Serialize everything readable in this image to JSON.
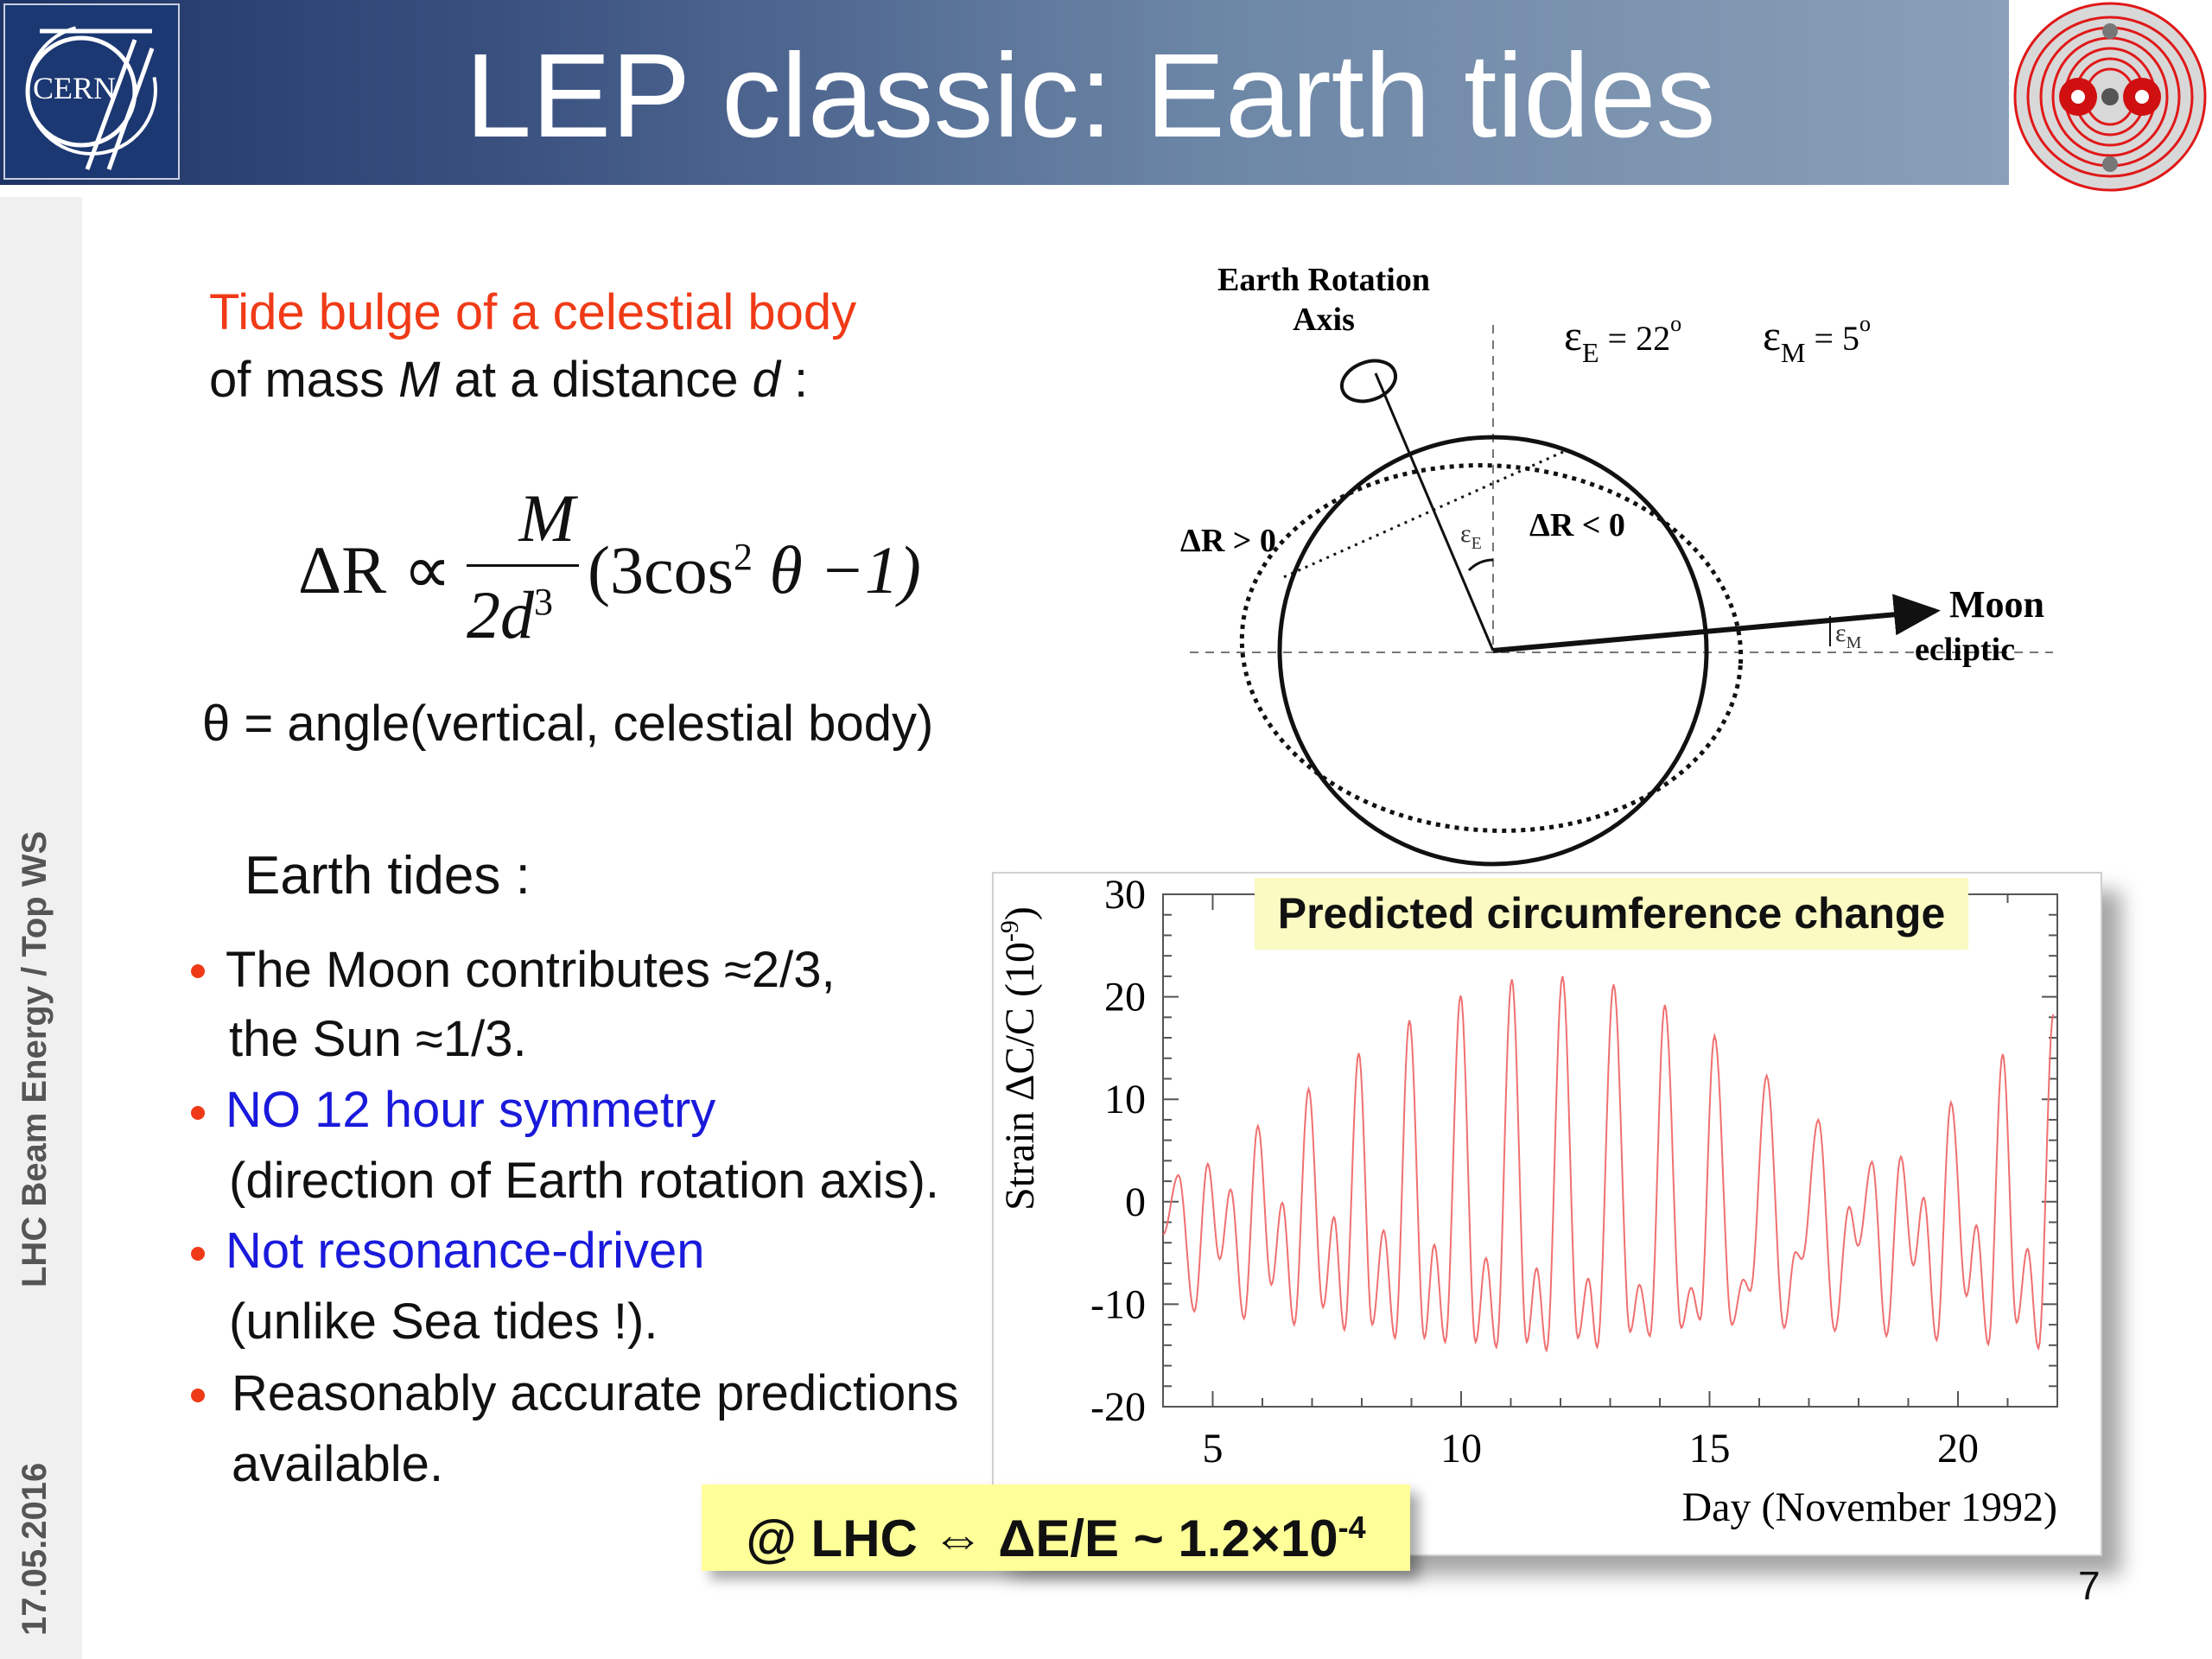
{
  "header": {
    "title": "LEP classic: Earth tides",
    "left_logo_text": "CERN",
    "colors": {
      "header_dark": "#1e3466",
      "header_light": "#8aa0b8"
    }
  },
  "sidebar": {
    "footer_title": "LHC Beam Energy / Top WS",
    "date": "17.05.2016"
  },
  "intro": {
    "line1": "Tide bulge of a celestial body",
    "line2_pre": "of mass ",
    "line2_M": "M",
    "line2_mid": " at a distance ",
    "line2_d": "d",
    "line2_post": " :"
  },
  "formula": {
    "lhs": "ΔR ∝",
    "numerator": "M",
    "denominator": "2d",
    "denominator_exp": "3",
    "factor_pre": "(3cos",
    "factor_exp": "2",
    "factor_post": " θ −1)"
  },
  "theta_definition": "θ = angle(vertical, celestial body)",
  "earth_tides": {
    "heading": "Earth tides :",
    "bullets": [
      {
        "line1": "The Moon contributes ≈2/3,",
        "line2": "the Sun ≈1/3.",
        "color": "#111111"
      },
      {
        "line1": "NO 12 hour symmetry",
        "line2": "(direction of Earth rotation axis).",
        "color": "#1a1adc"
      },
      {
        "line1": "Not resonance-driven",
        "line2": "(unlike Sea tides !).",
        "color": "#1a1adc"
      },
      {
        "line1": "Reasonably accurate predictions",
        "line2": "available.",
        "color": "#111111"
      }
    ]
  },
  "diagram": {
    "axis_label_line1": "Earth Rotation",
    "axis_label_line2": "Axis",
    "eps_E": "ε",
    "eps_E_sub": "E",
    "eps_E_value": " = 22",
    "eps_E_deg": "o",
    "eps_M": "ε",
    "eps_M_sub": "M",
    "eps_M_value": " = 5",
    "eps_M_deg": "o",
    "dr_pos": "ΔR > 0",
    "dr_neg": "ΔR < 0",
    "moon": "Moon",
    "ecliptic": "ecliptic",
    "angle_E": "ε",
    "angle_E_sub": "E",
    "angle_M": "ε",
    "angle_M_sub": "M"
  },
  "result_box": {
    "text": "@ LHC ⇔ ΔE/E ~ 1.2×10",
    "exp": "-4"
  },
  "page_number": "7",
  "chart_data": {
    "type": "line",
    "title": "Predicted circumference change",
    "xlabel": "Day (November 1992)",
    "ylabel": "Strain ΔC/C (10",
    "ylabel_exp": "-9",
    "ylabel_close": ")",
    "xlim": [
      4,
      22
    ],
    "ylim": [
      -20,
      30
    ],
    "x_ticks": [
      5,
      10,
      15,
      20
    ],
    "y_ticks": [
      -20,
      -10,
      0,
      10,
      20,
      30
    ],
    "grid": false,
    "line_color": "#f07070",
    "series": [
      {
        "x": [
          4.0,
          4.31,
          4.63,
          4.9,
          5.14,
          5.36,
          5.63,
          5.91,
          6.18,
          6.4,
          6.64,
          6.93,
          7.22,
          7.44,
          7.65,
          7.94,
          8.21,
          8.44,
          8.67,
          8.96,
          9.26,
          9.46,
          9.68,
          9.99,
          10.29,
          10.5,
          10.71,
          11.02,
          11.32,
          11.52,
          11.72,
          12.04,
          12.35,
          12.56,
          12.74,
          13.07,
          13.4,
          13.59,
          13.8,
          14.1,
          14.43,
          14.63,
          14.81,
          15.1,
          15.45,
          15.68,
          15.82,
          16.15,
          16.5,
          16.73,
          16.86,
          17.19,
          17.52,
          17.81,
          17.99,
          18.27,
          18.56,
          18.85,
          19.1,
          19.31,
          19.57,
          19.86,
          20.17,
          20.37,
          20.61,
          20.9,
          21.18,
          21.4,
          21.62,
          21.92
        ],
        "y": [
          -3.2,
          2.6,
          -10.7,
          3.7,
          -5.6,
          1.2,
          -11.4,
          7.4,
          -8.1,
          -0.1,
          -12.0,
          11.0,
          -10.3,
          -1.5,
          -12.5,
          14.5,
          -12.0,
          -2.8,
          -13.3,
          17.7,
          -13.3,
          -4.2,
          -13.7,
          20.1,
          -13.7,
          -5.5,
          -14.2,
          21.7,
          -13.7,
          -6.5,
          -14.5,
          22.0,
          -13.3,
          -7.5,
          -14.2,
          21.2,
          -12.7,
          -8.1,
          -13.1,
          19.2,
          -12.3,
          -8.4,
          -11.5,
          16.2,
          -12.0,
          -7.6,
          -8.7,
          12.3,
          -12.3,
          -4.9,
          -5.6,
          8.0,
          -12.6,
          -0.5,
          -4.3,
          3.9,
          -13.1,
          4.4,
          -6.2,
          0.4,
          -13.5,
          9.7,
          -9.2,
          -2.3,
          -13.9,
          14.4,
          -11.8,
          -4.6,
          -14.3,
          18.3
        ]
      }
    ]
  }
}
